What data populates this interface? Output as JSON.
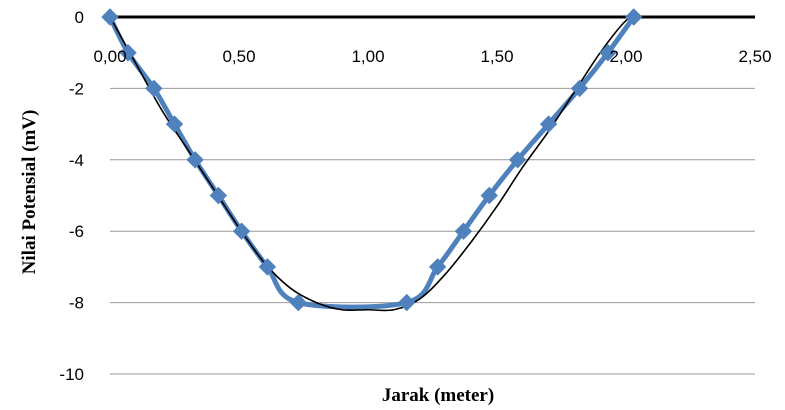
{
  "chart_data": {
    "type": "line",
    "xlabel": "Jarak (meter)",
    "ylabel": "Nilai Potensial (mV)",
    "xlim": [
      0,
      2.5
    ],
    "ylim": [
      -10,
      0
    ],
    "x_ticks": [
      "0,00",
      "0,50",
      "1,00",
      "1,50",
      "2,00",
      "2,50"
    ],
    "y_ticks": [
      "0",
      "-2",
      "-4",
      "-6",
      "-8",
      "-10"
    ],
    "grid": "horizontal",
    "legend": "none",
    "series": [
      {
        "marker": "diamond",
        "color": "#4f81bd",
        "x": [
          0.0,
          0.07,
          0.17,
          0.25,
          0.33,
          0.42,
          0.51,
          0.61,
          0.73,
          1.15,
          1.27,
          1.37,
          1.47,
          1.58,
          1.7,
          1.82,
          1.93,
          2.03
        ],
        "y": [
          0,
          -1,
          -2,
          -3,
          -4,
          -5,
          -6,
          -7,
          -8,
          -8,
          -7,
          -6,
          -5,
          -4,
          -3,
          -2,
          -1,
          0
        ]
      },
      {
        "style": "trendline",
        "color": "#000000",
        "x": [
          0.0,
          0.1,
          0.2,
          0.3,
          0.4,
          0.5,
          0.6,
          0.7,
          0.8,
          0.9,
          1.0,
          1.1,
          1.2,
          1.3,
          1.4,
          1.5,
          1.6,
          1.7,
          1.8,
          1.9,
          2.0,
          2.05
        ],
        "y": [
          0,
          -1.3,
          -2.6,
          -3.7,
          -4.8,
          -5.9,
          -6.9,
          -7.6,
          -8.0,
          -8.2,
          -8.2,
          -8.2,
          -7.9,
          -7.2,
          -6.3,
          -5.3,
          -4.2,
          -3.2,
          -2.1,
          -1.0,
          -0.1,
          0
        ]
      }
    ]
  }
}
